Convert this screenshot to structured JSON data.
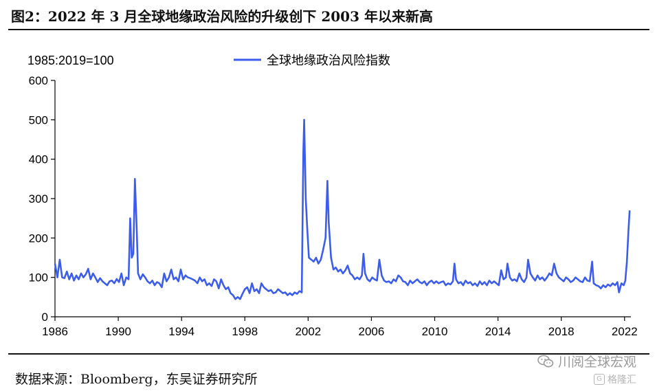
{
  "figure": {
    "title": "图2：2022 年 3 月全球地缘政治风险的升级创下 2003 年以来新高",
    "source": "数据来源：Bloomberg，东吴证券研究所",
    "watermark": "川阅全球宏观",
    "watermark2": "格隆汇",
    "watermark_icon": "wechat-icon"
  },
  "chart_data": {
    "type": "line",
    "unit_label": "1985:2019=100",
    "xlabel": "",
    "ylabel": "",
    "xlim": [
      1986,
      2022.4
    ],
    "ylim": [
      0,
      600
    ],
    "yticks": [
      0,
      100,
      200,
      300,
      400,
      500,
      600
    ],
    "xticks": [
      1986,
      1990,
      1994,
      1998,
      2002,
      2006,
      2010,
      2014,
      2018,
      2022
    ],
    "grid": false,
    "legend_position": "top-center",
    "colors": {
      "series": "#3b5ced",
      "axis": "#000000"
    },
    "series": [
      {
        "name": "全球地缘政治风险指数",
        "points": [
          [
            1986.0,
            135
          ],
          [
            1986.15,
            100
          ],
          [
            1986.3,
            145
          ],
          [
            1986.45,
            100
          ],
          [
            1986.6,
            98
          ],
          [
            1986.75,
            115
          ],
          [
            1986.9,
            95
          ],
          [
            1987.05,
            110
          ],
          [
            1987.2,
            92
          ],
          [
            1987.35,
            105
          ],
          [
            1987.5,
            95
          ],
          [
            1987.65,
            110
          ],
          [
            1987.8,
            100
          ],
          [
            1987.95,
            108
          ],
          [
            1988.1,
            122
          ],
          [
            1988.25,
            95
          ],
          [
            1988.4,
            110
          ],
          [
            1988.55,
            100
          ],
          [
            1988.7,
            88
          ],
          [
            1988.85,
            98
          ],
          [
            1989.0,
            90
          ],
          [
            1989.15,
            85
          ],
          [
            1989.3,
            80
          ],
          [
            1989.45,
            90
          ],
          [
            1989.6,
            92
          ],
          [
            1989.75,
            85
          ],
          [
            1989.9,
            96
          ],
          [
            1990.05,
            88
          ],
          [
            1990.2,
            110
          ],
          [
            1990.35,
            80
          ],
          [
            1990.5,
            100
          ],
          [
            1990.65,
            95
          ],
          [
            1990.75,
            250
          ],
          [
            1990.85,
            150
          ],
          [
            1990.95,
            160
          ],
          [
            1991.05,
            350
          ],
          [
            1991.15,
            240
          ],
          [
            1991.25,
            110
          ],
          [
            1991.4,
            95
          ],
          [
            1991.55,
            108
          ],
          [
            1991.7,
            100
          ],
          [
            1991.85,
            90
          ],
          [
            1992.0,
            85
          ],
          [
            1992.15,
            92
          ],
          [
            1992.3,
            80
          ],
          [
            1992.45,
            88
          ],
          [
            1992.6,
            85
          ],
          [
            1992.75,
            75
          ],
          [
            1992.9,
            110
          ],
          [
            1993.05,
            90
          ],
          [
            1993.2,
            100
          ],
          [
            1993.35,
            120
          ],
          [
            1993.5,
            95
          ],
          [
            1993.65,
            100
          ],
          [
            1993.8,
            90
          ],
          [
            1993.95,
            120
          ],
          [
            1994.1,
            95
          ],
          [
            1994.25,
            105
          ],
          [
            1994.4,
            100
          ],
          [
            1994.55,
            98
          ],
          [
            1994.7,
            95
          ],
          [
            1994.85,
            92
          ],
          [
            1995.0,
            85
          ],
          [
            1995.15,
            100
          ],
          [
            1995.3,
            90
          ],
          [
            1995.45,
            95
          ],
          [
            1995.6,
            80
          ],
          [
            1995.75,
            85
          ],
          [
            1995.9,
            78
          ],
          [
            1996.05,
            95
          ],
          [
            1996.2,
            90
          ],
          [
            1996.35,
            72
          ],
          [
            1996.5,
            95
          ],
          [
            1996.65,
            80
          ],
          [
            1996.8,
            70
          ],
          [
            1996.95,
            75
          ],
          [
            1997.1,
            60
          ],
          [
            1997.25,
            55
          ],
          [
            1997.4,
            45
          ],
          [
            1997.55,
            50
          ],
          [
            1997.7,
            45
          ],
          [
            1997.85,
            58
          ],
          [
            1998.0,
            70
          ],
          [
            1998.15,
            75
          ],
          [
            1998.3,
            60
          ],
          [
            1998.45,
            85
          ],
          [
            1998.6,
            65
          ],
          [
            1998.75,
            70
          ],
          [
            1998.9,
            60
          ],
          [
            1999.05,
            85
          ],
          [
            1999.2,
            75
          ],
          [
            1999.35,
            70
          ],
          [
            1999.5,
            65
          ],
          [
            1999.65,
            68
          ],
          [
            1999.8,
            60
          ],
          [
            1999.95,
            62
          ],
          [
            2000.1,
            70
          ],
          [
            2000.25,
            65
          ],
          [
            2000.4,
            60
          ],
          [
            2000.55,
            62
          ],
          [
            2000.7,
            55
          ],
          [
            2000.85,
            60
          ],
          [
            2001.0,
            55
          ],
          [
            2001.15,
            62
          ],
          [
            2001.3,
            58
          ],
          [
            2001.45,
            65
          ],
          [
            2001.6,
            62
          ],
          [
            2001.7,
            420
          ],
          [
            2001.75,
            500
          ],
          [
            2001.85,
            300
          ],
          [
            2001.95,
            220
          ],
          [
            2002.05,
            150
          ],
          [
            2002.2,
            145
          ],
          [
            2002.35,
            140
          ],
          [
            2002.5,
            150
          ],
          [
            2002.65,
            135
          ],
          [
            2002.8,
            145
          ],
          [
            2002.95,
            170
          ],
          [
            2003.1,
            200
          ],
          [
            2003.22,
            345
          ],
          [
            2003.3,
            240
          ],
          [
            2003.45,
            150
          ],
          [
            2003.6,
            120
          ],
          [
            2003.75,
            125
          ],
          [
            2003.9,
            115
          ],
          [
            2004.05,
            120
          ],
          [
            2004.2,
            110
          ],
          [
            2004.35,
            118
          ],
          [
            2004.5,
            130
          ],
          [
            2004.65,
            110
          ],
          [
            2004.8,
            105
          ],
          [
            2004.95,
            95
          ],
          [
            2005.1,
            100
          ],
          [
            2005.25,
            95
          ],
          [
            2005.4,
            105
          ],
          [
            2005.5,
            160
          ],
          [
            2005.6,
            110
          ],
          [
            2005.75,
            95
          ],
          [
            2005.9,
            90
          ],
          [
            2006.05,
            100
          ],
          [
            2006.2,
            95
          ],
          [
            2006.35,
            92
          ],
          [
            2006.5,
            145
          ],
          [
            2006.65,
            105
          ],
          [
            2006.8,
            92
          ],
          [
            2006.95,
            88
          ],
          [
            2007.1,
            90
          ],
          [
            2007.25,
            85
          ],
          [
            2007.4,
            95
          ],
          [
            2007.55,
            90
          ],
          [
            2007.7,
            105
          ],
          [
            2007.85,
            100
          ],
          [
            2008.0,
            90
          ],
          [
            2008.15,
            88
          ],
          [
            2008.3,
            80
          ],
          [
            2008.45,
            92
          ],
          [
            2008.6,
            85
          ],
          [
            2008.75,
            90
          ],
          [
            2008.9,
            95
          ],
          [
            2009.05,
            88
          ],
          [
            2009.2,
            85
          ],
          [
            2009.35,
            90
          ],
          [
            2009.5,
            80
          ],
          [
            2009.65,
            88
          ],
          [
            2009.8,
            92
          ],
          [
            2009.95,
            85
          ],
          [
            2010.1,
            90
          ],
          [
            2010.25,
            85
          ],
          [
            2010.4,
            88
          ],
          [
            2010.55,
            90
          ],
          [
            2010.7,
            80
          ],
          [
            2010.85,
            85
          ],
          [
            2011.0,
            82
          ],
          [
            2011.15,
            90
          ],
          [
            2011.25,
            135
          ],
          [
            2011.35,
            95
          ],
          [
            2011.5,
            85
          ],
          [
            2011.65,
            88
          ],
          [
            2011.8,
            80
          ],
          [
            2011.95,
            92
          ],
          [
            2012.1,
            85
          ],
          [
            2012.25,
            88
          ],
          [
            2012.4,
            80
          ],
          [
            2012.55,
            85
          ],
          [
            2012.7,
            78
          ],
          [
            2012.85,
            90
          ],
          [
            2013.0,
            82
          ],
          [
            2013.15,
            88
          ],
          [
            2013.3,
            80
          ],
          [
            2013.45,
            92
          ],
          [
            2013.6,
            85
          ],
          [
            2013.75,
            90
          ],
          [
            2013.9,
            85
          ],
          [
            2014.05,
            80
          ],
          [
            2014.2,
            118
          ],
          [
            2014.35,
            95
          ],
          [
            2014.5,
            100
          ],
          [
            2014.6,
            135
          ],
          [
            2014.75,
            100
          ],
          [
            2014.9,
            92
          ],
          [
            2015.05,
            95
          ],
          [
            2015.2,
            90
          ],
          [
            2015.35,
            110
          ],
          [
            2015.5,
            95
          ],
          [
            2015.65,
            88
          ],
          [
            2015.8,
            100
          ],
          [
            2015.9,
            145
          ],
          [
            2016.05,
            110
          ],
          [
            2016.2,
            100
          ],
          [
            2016.35,
            92
          ],
          [
            2016.5,
            105
          ],
          [
            2016.65,
            95
          ],
          [
            2016.8,
            100
          ],
          [
            2016.95,
            92
          ],
          [
            2017.1,
            100
          ],
          [
            2017.25,
            110
          ],
          [
            2017.4,
            105
          ],
          [
            2017.55,
            135
          ],
          [
            2017.7,
            110
          ],
          [
            2017.85,
            100
          ],
          [
            2018.0,
            95
          ],
          [
            2018.15,
            90
          ],
          [
            2018.3,
            100
          ],
          [
            2018.45,
            95
          ],
          [
            2018.6,
            88
          ],
          [
            2018.75,
            92
          ],
          [
            2018.9,
            100
          ],
          [
            2019.05,
            95
          ],
          [
            2019.2,
            90
          ],
          [
            2019.35,
            88
          ],
          [
            2019.5,
            100
          ],
          [
            2019.65,
            92
          ],
          [
            2019.8,
            90
          ],
          [
            2019.95,
            140
          ],
          [
            2020.05,
            85
          ],
          [
            2020.2,
            80
          ],
          [
            2020.35,
            78
          ],
          [
            2020.5,
            72
          ],
          [
            2020.65,
            80
          ],
          [
            2020.8,
            75
          ],
          [
            2020.95,
            82
          ],
          [
            2021.1,
            78
          ],
          [
            2021.25,
            85
          ],
          [
            2021.4,
            80
          ],
          [
            2021.55,
            88
          ],
          [
            2021.65,
            62
          ],
          [
            2021.8,
            85
          ],
          [
            2021.95,
            80
          ],
          [
            2022.05,
            92
          ],
          [
            2022.15,
            140
          ],
          [
            2022.25,
            220
          ],
          [
            2022.32,
            270
          ]
        ]
      }
    ]
  }
}
